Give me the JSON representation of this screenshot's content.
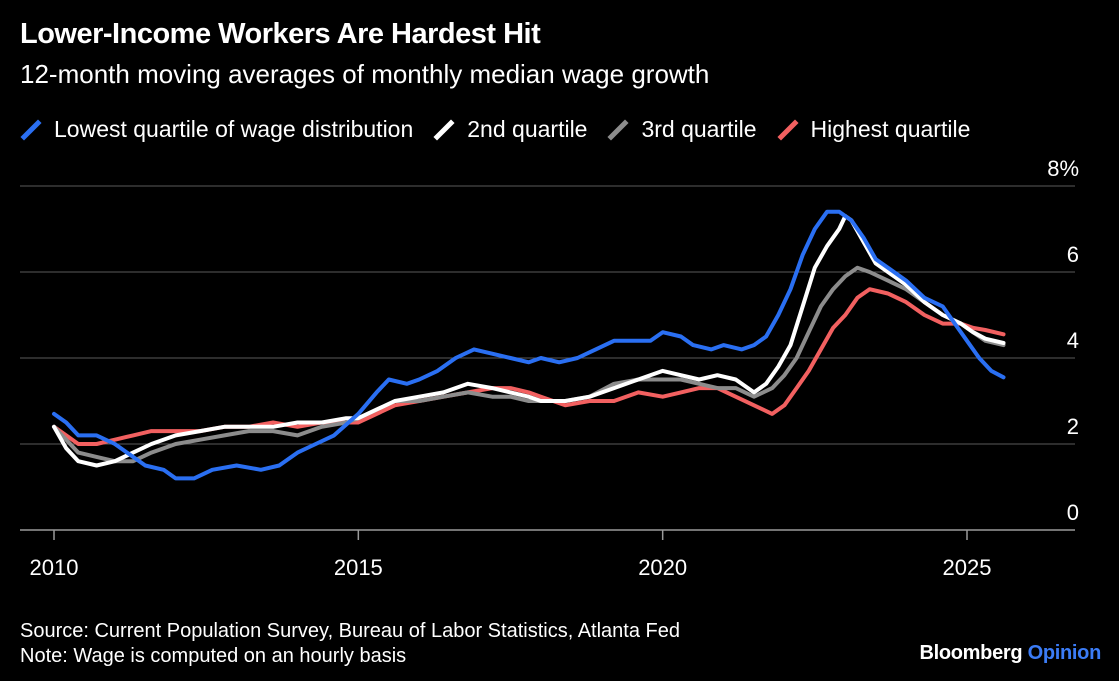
{
  "title": "Lower-Income Workers Are Hardest Hit",
  "subtitle": "12-month moving averages of monthly median wage growth",
  "source": "Source: Current Population Survey, Bureau of Labor Statistics, Atlanta Fed",
  "note": "Note: Wage is computed on an hourly basis",
  "brand": {
    "name": "Bloomberg",
    "suffix": "Opinion"
  },
  "chart_data": {
    "type": "line",
    "xlim": [
      2009.95,
      2025.8
    ],
    "ylim": [
      0,
      8
    ],
    "y_ticks": [
      0,
      2,
      4,
      6,
      8
    ],
    "y_tick_labels": [
      "0",
      "2",
      "4",
      "6",
      "8%"
    ],
    "x_ticks": [
      2010,
      2015,
      2020,
      2025
    ],
    "x_tick_labels": [
      "2010",
      "2015",
      "2020",
      "2025"
    ],
    "grid": "horizontal",
    "y_axis_side": "right",
    "legend_position": "top",
    "series": [
      {
        "name": "Lowest quartile of wage distribution",
        "color": "#2a6ff2",
        "points": [
          [
            2010.0,
            2.7
          ],
          [
            2010.2,
            2.5
          ],
          [
            2010.4,
            2.2
          ],
          [
            2010.7,
            2.2
          ],
          [
            2011.0,
            2.0
          ],
          [
            2011.3,
            1.7
          ],
          [
            2011.5,
            1.5
          ],
          [
            2011.8,
            1.4
          ],
          [
            2012.0,
            1.2
          ],
          [
            2012.3,
            1.2
          ],
          [
            2012.6,
            1.4
          ],
          [
            2013.0,
            1.5
          ],
          [
            2013.4,
            1.4
          ],
          [
            2013.7,
            1.5
          ],
          [
            2014.0,
            1.8
          ],
          [
            2014.3,
            2.0
          ],
          [
            2014.6,
            2.2
          ],
          [
            2015.0,
            2.7
          ],
          [
            2015.3,
            3.2
          ],
          [
            2015.5,
            3.5
          ],
          [
            2015.8,
            3.4
          ],
          [
            2016.0,
            3.5
          ],
          [
            2016.3,
            3.7
          ],
          [
            2016.6,
            4.0
          ],
          [
            2016.9,
            4.2
          ],
          [
            2017.2,
            4.1
          ],
          [
            2017.5,
            4.0
          ],
          [
            2017.8,
            3.9
          ],
          [
            2018.0,
            4.0
          ],
          [
            2018.3,
            3.9
          ],
          [
            2018.6,
            4.0
          ],
          [
            2018.9,
            4.2
          ],
          [
            2019.2,
            4.4
          ],
          [
            2019.5,
            4.4
          ],
          [
            2019.8,
            4.4
          ],
          [
            2020.0,
            4.6
          ],
          [
            2020.3,
            4.5
          ],
          [
            2020.5,
            4.3
          ],
          [
            2020.8,
            4.2
          ],
          [
            2021.0,
            4.3
          ],
          [
            2021.3,
            4.2
          ],
          [
            2021.5,
            4.3
          ],
          [
            2021.7,
            4.5
          ],
          [
            2021.9,
            5.0
          ],
          [
            2022.1,
            5.6
          ],
          [
            2022.3,
            6.4
          ],
          [
            2022.5,
            7.0
          ],
          [
            2022.7,
            7.4
          ],
          [
            2022.9,
            7.4
          ],
          [
            2023.1,
            7.2
          ],
          [
            2023.3,
            6.8
          ],
          [
            2023.5,
            6.3
          ],
          [
            2023.8,
            6.0
          ],
          [
            2024.0,
            5.8
          ],
          [
            2024.3,
            5.4
          ],
          [
            2024.6,
            5.2
          ],
          [
            2024.8,
            4.8
          ],
          [
            2025.0,
            4.4
          ],
          [
            2025.2,
            4.0
          ],
          [
            2025.4,
            3.7
          ],
          [
            2025.6,
            3.55
          ]
        ]
      },
      {
        "name": "2nd quartile",
        "color": "#ffffff",
        "points": [
          [
            2010.0,
            2.4
          ],
          [
            2010.2,
            1.9
          ],
          [
            2010.4,
            1.6
          ],
          [
            2010.7,
            1.5
          ],
          [
            2011.0,
            1.6
          ],
          [
            2011.3,
            1.8
          ],
          [
            2011.6,
            2.0
          ],
          [
            2012.0,
            2.2
          ],
          [
            2012.4,
            2.3
          ],
          [
            2012.8,
            2.4
          ],
          [
            2013.2,
            2.4
          ],
          [
            2013.6,
            2.4
          ],
          [
            2014.0,
            2.5
          ],
          [
            2014.4,
            2.5
          ],
          [
            2014.8,
            2.6
          ],
          [
            2015.0,
            2.6
          ],
          [
            2015.3,
            2.8
          ],
          [
            2015.6,
            3.0
          ],
          [
            2016.0,
            3.1
          ],
          [
            2016.4,
            3.2
          ],
          [
            2016.8,
            3.4
          ],
          [
            2017.2,
            3.3
          ],
          [
            2017.5,
            3.2
          ],
          [
            2017.8,
            3.1
          ],
          [
            2018.0,
            3.0
          ],
          [
            2018.4,
            3.0
          ],
          [
            2018.8,
            3.1
          ],
          [
            2019.2,
            3.3
          ],
          [
            2019.6,
            3.5
          ],
          [
            2020.0,
            3.7
          ],
          [
            2020.3,
            3.6
          ],
          [
            2020.6,
            3.5
          ],
          [
            2020.9,
            3.6
          ],
          [
            2021.2,
            3.5
          ],
          [
            2021.5,
            3.2
          ],
          [
            2021.7,
            3.4
          ],
          [
            2021.9,
            3.8
          ],
          [
            2022.1,
            4.3
          ],
          [
            2022.3,
            5.2
          ],
          [
            2022.5,
            6.1
          ],
          [
            2022.7,
            6.6
          ],
          [
            2022.9,
            7.0
          ],
          [
            2023.0,
            7.3
          ],
          [
            2023.1,
            7.2
          ],
          [
            2023.3,
            6.7
          ],
          [
            2023.5,
            6.2
          ],
          [
            2023.8,
            5.9
          ],
          [
            2024.0,
            5.7
          ],
          [
            2024.3,
            5.3
          ],
          [
            2024.6,
            5.0
          ],
          [
            2024.9,
            4.8
          ],
          [
            2025.1,
            4.6
          ],
          [
            2025.3,
            4.45
          ],
          [
            2025.6,
            4.35
          ]
        ]
      },
      {
        "name": "3rd quartile",
        "color": "#8c8c8c",
        "points": [
          [
            2010.0,
            2.4
          ],
          [
            2010.2,
            2.1
          ],
          [
            2010.4,
            1.8
          ],
          [
            2010.7,
            1.7
          ],
          [
            2011.0,
            1.6
          ],
          [
            2011.3,
            1.6
          ],
          [
            2011.6,
            1.8
          ],
          [
            2012.0,
            2.0
          ],
          [
            2012.4,
            2.1
          ],
          [
            2012.8,
            2.2
          ],
          [
            2013.2,
            2.3
          ],
          [
            2013.6,
            2.3
          ],
          [
            2014.0,
            2.2
          ],
          [
            2014.4,
            2.4
          ],
          [
            2014.8,
            2.5
          ],
          [
            2015.0,
            2.6
          ],
          [
            2015.3,
            2.8
          ],
          [
            2015.6,
            3.0
          ],
          [
            2016.0,
            3.0
          ],
          [
            2016.4,
            3.1
          ],
          [
            2016.8,
            3.2
          ],
          [
            2017.2,
            3.1
          ],
          [
            2017.5,
            3.1
          ],
          [
            2017.8,
            3.0
          ],
          [
            2018.0,
            3.0
          ],
          [
            2018.4,
            3.0
          ],
          [
            2018.8,
            3.1
          ],
          [
            2019.2,
            3.4
          ],
          [
            2019.6,
            3.5
          ],
          [
            2020.0,
            3.5
          ],
          [
            2020.3,
            3.5
          ],
          [
            2020.6,
            3.4
          ],
          [
            2020.9,
            3.3
          ],
          [
            2021.2,
            3.3
          ],
          [
            2021.5,
            3.1
          ],
          [
            2021.8,
            3.3
          ],
          [
            2022.0,
            3.6
          ],
          [
            2022.2,
            4.0
          ],
          [
            2022.4,
            4.6
          ],
          [
            2022.6,
            5.2
          ],
          [
            2022.8,
            5.6
          ],
          [
            2023.0,
            5.9
          ],
          [
            2023.2,
            6.1
          ],
          [
            2023.4,
            6.0
          ],
          [
            2023.7,
            5.8
          ],
          [
            2024.0,
            5.6
          ],
          [
            2024.3,
            5.3
          ],
          [
            2024.6,
            5.0
          ],
          [
            2024.9,
            4.8
          ],
          [
            2025.1,
            4.6
          ],
          [
            2025.3,
            4.4
          ],
          [
            2025.6,
            4.3
          ]
        ]
      },
      {
        "name": "Highest quartile",
        "color": "#f26060",
        "points": [
          [
            2010.0,
            2.4
          ],
          [
            2010.2,
            2.2
          ],
          [
            2010.4,
            2.0
          ],
          [
            2010.7,
            2.0
          ],
          [
            2011.0,
            2.1
          ],
          [
            2011.3,
            2.2
          ],
          [
            2011.6,
            2.3
          ],
          [
            2012.0,
            2.3
          ],
          [
            2012.4,
            2.3
          ],
          [
            2012.8,
            2.4
          ],
          [
            2013.2,
            2.4
          ],
          [
            2013.6,
            2.5
          ],
          [
            2014.0,
            2.4
          ],
          [
            2014.4,
            2.5
          ],
          [
            2014.8,
            2.5
          ],
          [
            2015.0,
            2.5
          ],
          [
            2015.3,
            2.7
          ],
          [
            2015.6,
            2.9
          ],
          [
            2016.0,
            3.0
          ],
          [
            2016.4,
            3.1
          ],
          [
            2016.8,
            3.2
          ],
          [
            2017.2,
            3.3
          ],
          [
            2017.5,
            3.3
          ],
          [
            2017.8,
            3.2
          ],
          [
            2018.0,
            3.1
          ],
          [
            2018.4,
            2.9
          ],
          [
            2018.8,
            3.0
          ],
          [
            2019.2,
            3.0
          ],
          [
            2019.6,
            3.2
          ],
          [
            2020.0,
            3.1
          ],
          [
            2020.3,
            3.2
          ],
          [
            2020.6,
            3.3
          ],
          [
            2020.9,
            3.3
          ],
          [
            2021.2,
            3.1
          ],
          [
            2021.5,
            2.9
          ],
          [
            2021.8,
            2.7
          ],
          [
            2022.0,
            2.9
          ],
          [
            2022.2,
            3.3
          ],
          [
            2022.4,
            3.7
          ],
          [
            2022.6,
            4.2
          ],
          [
            2022.8,
            4.7
          ],
          [
            2023.0,
            5.0
          ],
          [
            2023.2,
            5.4
          ],
          [
            2023.4,
            5.6
          ],
          [
            2023.7,
            5.5
          ],
          [
            2024.0,
            5.3
          ],
          [
            2024.3,
            5.0
          ],
          [
            2024.6,
            4.8
          ],
          [
            2024.9,
            4.8
          ],
          [
            2025.1,
            4.7
          ],
          [
            2025.3,
            4.65
          ],
          [
            2025.6,
            4.55
          ]
        ]
      }
    ]
  }
}
